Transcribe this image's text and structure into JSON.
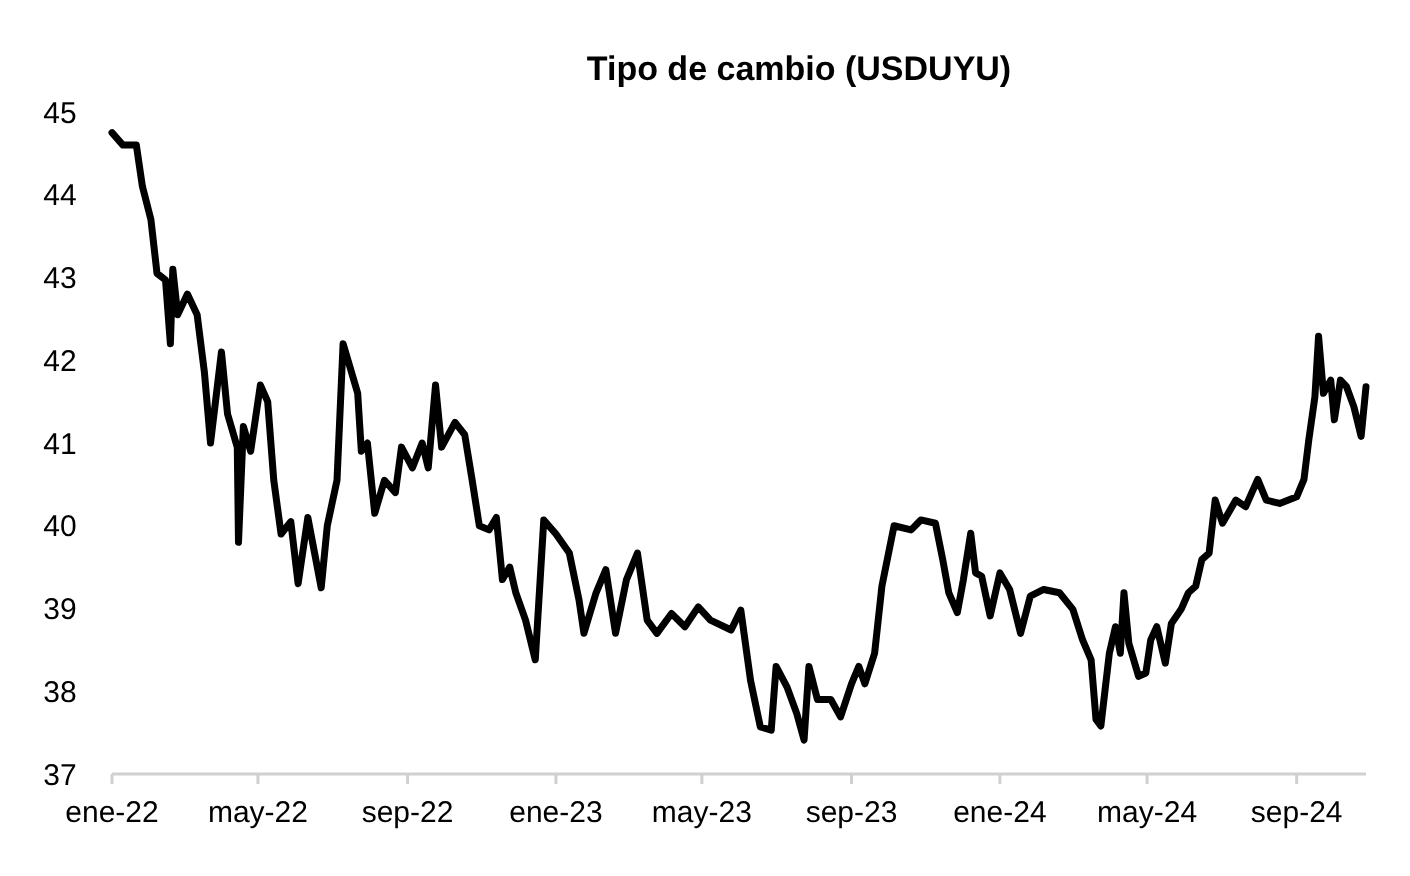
{
  "chart_data": {
    "type": "line",
    "title": "Tipo de cambio (USDUYU)",
    "xlim": [
      "2022-01-01",
      "2024-10-28"
    ],
    "xticks": [
      {
        "value": "2022-01-01",
        "label": "ene-22"
      },
      {
        "value": "2022-05-01",
        "label": "may-22"
      },
      {
        "value": "2022-09-01",
        "label": "sep-22"
      },
      {
        "value": "2023-01-01",
        "label": "ene-23"
      },
      {
        "value": "2023-05-01",
        "label": "may-23"
      },
      {
        "value": "2023-09-01",
        "label": "sep-23"
      },
      {
        "value": "2024-01-01",
        "label": "ene-24"
      },
      {
        "value": "2024-05-01",
        "label": "may-24"
      },
      {
        "value": "2024-09-01",
        "label": "sep-24"
      }
    ],
    "ylim": [
      37,
      45
    ],
    "yticks": [
      37,
      38,
      39,
      40,
      41,
      42,
      43,
      44,
      45
    ],
    "marker": "none",
    "line_style": "solid",
    "series": [
      {
        "color": "#000000",
        "x": [
          "2022-01-01",
          "2022-01-10",
          "2022-01-21",
          "2022-01-26",
          "2022-02-02",
          "2022-02-07",
          "2022-02-14",
          "2022-02-18",
          "2022-02-20",
          "2022-02-24",
          "2022-03-04",
          "2022-03-12",
          "2022-03-18",
          "2022-03-23",
          "2022-04-01",
          "2022-04-06",
          "2022-04-14",
          "2022-04-15",
          "2022-04-19",
          "2022-04-25",
          "2022-05-03",
          "2022-05-09",
          "2022-05-14",
          "2022-05-20",
          "2022-05-28",
          "2022-06-03",
          "2022-06-11",
          "2022-06-22",
          "2022-06-27",
          "2022-07-05",
          "2022-07-10",
          "2022-07-22",
          "2022-07-25",
          "2022-07-30",
          "2022-08-05",
          "2022-08-13",
          "2022-08-22",
          "2022-08-27",
          "2022-09-05",
          "2022-09-13",
          "2022-09-18",
          "2022-09-24",
          "2022-09-29",
          "2022-10-10",
          "2022-10-18",
          "2022-10-24",
          "2022-10-30",
          "2022-11-07",
          "2022-11-13",
          "2022-11-18",
          "2022-11-24",
          "2022-11-29",
          "2022-12-07",
          "2022-12-15",
          "2022-12-22",
          "2023-01-01",
          "2023-01-12",
          "2023-01-20",
          "2023-01-24",
          "2023-02-03",
          "2023-02-11",
          "2023-02-19",
          "2023-02-28",
          "2023-03-09",
          "2023-03-17",
          "2023-03-25",
          "2023-04-06",
          "2023-04-17",
          "2023-04-28",
          "2023-05-08",
          "2023-05-25",
          "2023-06-02",
          "2023-06-10",
          "2023-06-18",
          "2023-06-27",
          "2023-07-01",
          "2023-07-10",
          "2023-07-18",
          "2023-07-24",
          "2023-07-28",
          "2023-08-04",
          "2023-08-15",
          "2023-08-23",
          "2023-09-01",
          "2023-09-07",
          "2023-09-12",
          "2023-09-20",
          "2023-09-26",
          "2023-10-06",
          "2023-10-20",
          "2023-10-28",
          "2023-11-09",
          "2023-11-15",
          "2023-11-20",
          "2023-11-27",
          "2023-12-02",
          "2023-12-08",
          "2023-12-12",
          "2023-12-17",
          "2023-12-24",
          "2024-01-01",
          "2024-01-09",
          "2024-01-18",
          "2024-01-26",
          "2024-02-06",
          "2024-02-19",
          "2024-03-01",
          "2024-03-09",
          "2024-03-16",
          "2024-03-20",
          "2024-03-24",
          "2024-03-31",
          "2024-04-05",
          "2024-04-09",
          "2024-04-12",
          "2024-04-16",
          "2024-04-24",
          "2024-04-30",
          "2024-05-04",
          "2024-05-09",
          "2024-05-16",
          "2024-05-21",
          "2024-05-29",
          "2024-06-04",
          "2024-06-10",
          "2024-06-15",
          "2024-06-21",
          "2024-06-26",
          "2024-07-02",
          "2024-07-13",
          "2024-07-21",
          "2024-07-31",
          "2024-08-07",
          "2024-08-18",
          "2024-09-01",
          "2024-09-07",
          "2024-09-11",
          "2024-09-16",
          "2024-09-19",
          "2024-09-23",
          "2024-09-29",
          "2024-10-02",
          "2024-10-07",
          "2024-10-12",
          "2024-10-18",
          "2024-10-24",
          "2024-10-28"
        ],
        "values": [
          44.75,
          44.6,
          44.6,
          44.1,
          43.7,
          43.05,
          42.97,
          42.2,
          43.1,
          42.55,
          42.8,
          42.55,
          41.85,
          41.0,
          42.1,
          41.35,
          40.95,
          39.8,
          41.2,
          40.9,
          41.7,
          41.5,
          40.55,
          39.9,
          40.05,
          39.3,
          40.1,
          39.25,
          40.0,
          40.55,
          42.2,
          41.6,
          40.9,
          41.0,
          40.15,
          40.55,
          40.4,
          40.95,
          40.7,
          41.0,
          40.7,
          41.7,
          40.95,
          41.25,
          41.1,
          40.56,
          40.0,
          39.95,
          40.1,
          39.35,
          39.5,
          39.19,
          38.86,
          38.38,
          40.07,
          39.9,
          39.67,
          39.1,
          38.7,
          39.19,
          39.47,
          38.7,
          39.35,
          39.67,
          38.86,
          38.7,
          38.94,
          38.78,
          39.02,
          38.86,
          38.74,
          38.98,
          38.13,
          37.57,
          37.53,
          38.3,
          38.05,
          37.73,
          37.41,
          38.3,
          37.9,
          37.9,
          37.69,
          38.09,
          38.3,
          38.09,
          38.46,
          39.27,
          40.0,
          39.95,
          40.07,
          40.03,
          39.59,
          39.19,
          38.95,
          39.35,
          39.91,
          39.43,
          39.39,
          38.91,
          39.43,
          39.23,
          38.7,
          39.15,
          39.23,
          39.19,
          38.99,
          38.62,
          38.38,
          37.66,
          37.58,
          38.46,
          38.78,
          38.46,
          39.19,
          38.58,
          38.18,
          38.22,
          38.62,
          38.78,
          38.34,
          38.82,
          38.99,
          39.19,
          39.27,
          39.59,
          39.67,
          40.31,
          40.03,
          40.31,
          40.23,
          40.56,
          40.31,
          40.27,
          40.35,
          40.56,
          41.04,
          41.56,
          42.29,
          41.6,
          41.76,
          41.28,
          41.76,
          41.68,
          41.44,
          41.08,
          41.68
        ]
      }
    ]
  }
}
